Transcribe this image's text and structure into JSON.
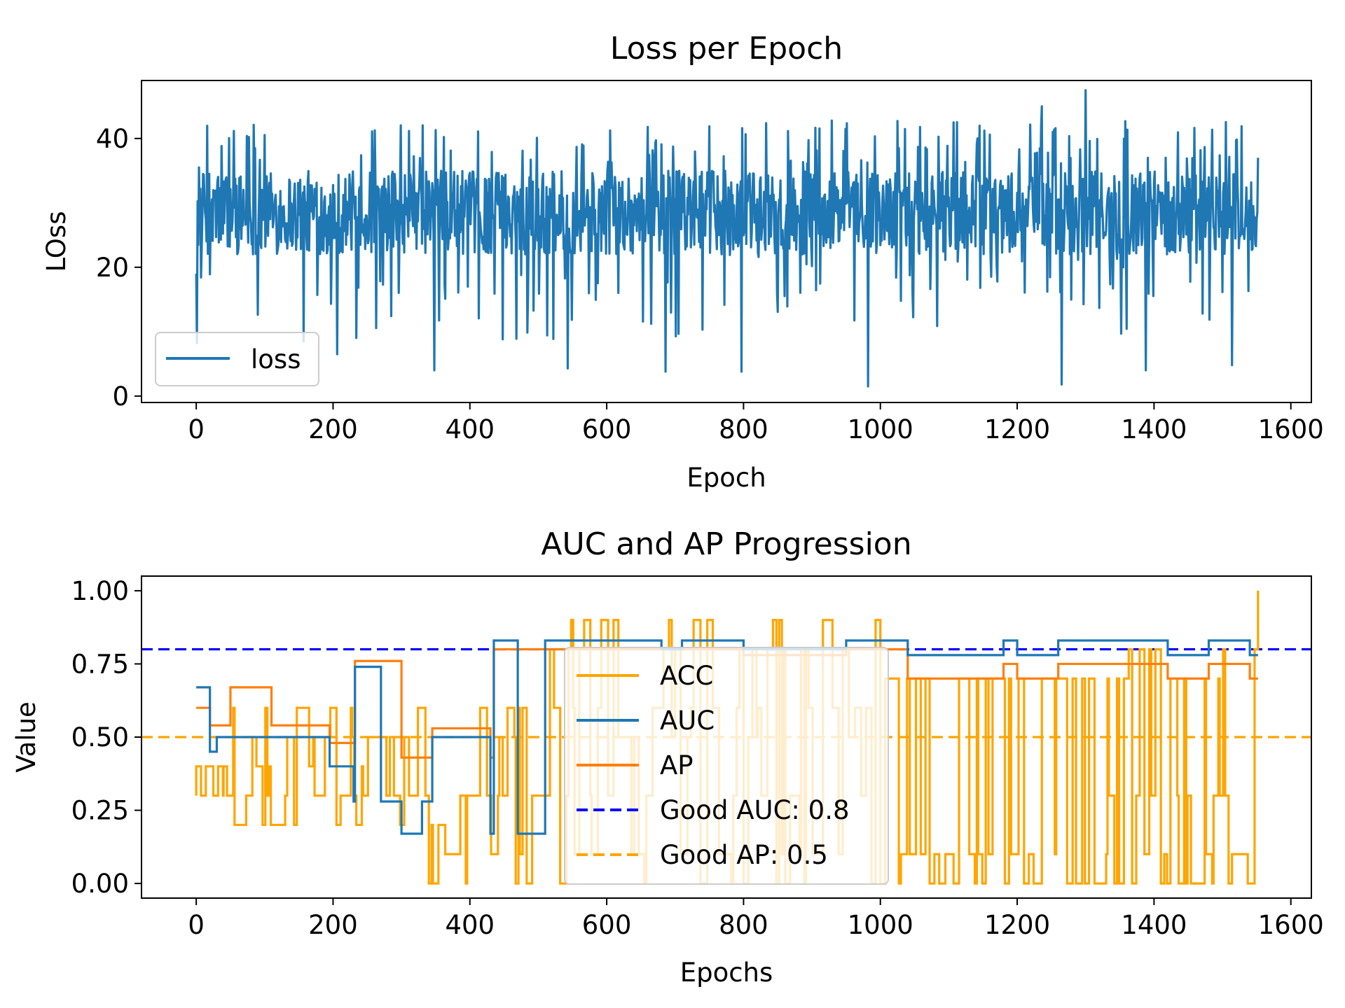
{
  "chart_data": [
    {
      "type": "line",
      "title": "Loss per Epoch",
      "xlabel": "Epoch",
      "ylabel": "LOss",
      "xlim": [
        -80,
        1630
      ],
      "ylim": [
        -1,
        49
      ],
      "xticks": [
        0,
        200,
        400,
        600,
        800,
        1000,
        1200,
        1400,
        1600
      ],
      "xtick_labels": [
        "0",
        "200",
        "400",
        "600",
        "800",
        "1000",
        "1200",
        "1400",
        "1600"
      ],
      "yticks": [
        0,
        20,
        40
      ],
      "ytick_labels": [
        "0",
        "20",
        "40"
      ],
      "grid": false,
      "legend": {
        "position": "lower-left",
        "entries": [
          "loss"
        ]
      },
      "series": [
        {
          "name": "loss",
          "color": "#1f77b4",
          "style": "solid",
          "n_points": 1553,
          "x_range": [
            0,
            1552
          ],
          "y_typical_range": [
            22,
            35
          ],
          "y_min": 1.5,
          "y_max": 47.5,
          "notable_points": [
            {
              "x": 0,
              "y": 19
            },
            {
              "x": 4,
              "y": 35.5
            },
            {
              "x": 157,
              "y": 8.5
            },
            {
              "x": 206,
              "y": 6.5
            },
            {
              "x": 348,
              "y": 4
            },
            {
              "x": 543,
              "y": 4.3
            },
            {
              "x": 686,
              "y": 3.8
            },
            {
              "x": 797,
              "y": 3.8
            },
            {
              "x": 982,
              "y": 1.5
            },
            {
              "x": 1265,
              "y": 1.8
            },
            {
              "x": 1300,
              "y": 47.5
            },
            {
              "x": 1236,
              "y": 45
            },
            {
              "x": 1388,
              "y": 4
            },
            {
              "x": 1514,
              "y": 4.8
            },
            {
              "x": 1552,
              "y": 37
            }
          ]
        }
      ]
    },
    {
      "type": "line",
      "title": "AUC and AP Progression",
      "xlabel": "Epochs",
      "ylabel": "Value",
      "xlim": [
        -80,
        1630
      ],
      "ylim": [
        -0.05,
        1.05
      ],
      "xticks": [
        0,
        200,
        400,
        600,
        800,
        1000,
        1200,
        1400,
        1600
      ],
      "xtick_labels": [
        "0",
        "200",
        "400",
        "600",
        "800",
        "1000",
        "1200",
        "1400",
        "1600"
      ],
      "yticks": [
        0,
        0.25,
        0.5,
        0.75,
        1.0
      ],
      "ytick_labels": [
        "0.00",
        "0.25",
        "0.50",
        "0.75",
        "1.00"
      ],
      "grid": false,
      "legend": {
        "position": "center",
        "entries": [
          "ACC",
          "AUC",
          "AP",
          "Good AUC: 0.8",
          "Good AP: 0.5"
        ]
      },
      "series": [
        {
          "name": "ACC",
          "color": "#ffa500",
          "style": "solid",
          "segments": [
            {
              "x": [
                0,
                40
              ],
              "levels": [
                0.3,
                0.4
              ]
            },
            {
              "x": [
                40,
                340
              ],
              "levels": [
                0.2,
                0.3,
                0.4,
                0.5,
                0.6
              ]
            },
            {
              "x": [
                340,
                500
              ],
              "levels": [
                0.0,
                0.1,
                0.2,
                0.3,
                0.5,
                0.6
              ]
            },
            {
              "x": [
                500,
                1000
              ],
              "levels": [
                0.0,
                0.1,
                0.3,
                0.5,
                0.6,
                0.8,
                0.9
              ]
            },
            {
              "x": [
                1000,
                1330
              ],
              "levels": [
                0.0,
                0.1,
                0.7
              ]
            },
            {
              "x": [
                1330,
                1552
              ],
              "levels": [
                0.0,
                0.1,
                0.3,
                0.7,
                0.8
              ]
            }
          ],
          "last_point": {
            "x": 1552,
            "y": 1.0
          }
        },
        {
          "name": "AUC",
          "color": "#1f77b4",
          "style": "solid",
          "steps": [
            {
              "x": [
                0,
                20
              ],
              "y": 0.67
            },
            {
              "x": 20,
              "y": 0.45
            },
            {
              "x": 30,
              "y": 0.5
            },
            {
              "x": 110,
              "y": 0.5
            },
            {
              "x": 195,
              "y": 0.5
            },
            {
              "x": 195,
              "y": 0.4
            },
            {
              "x": 230,
              "y": 0.28
            },
            {
              "x": 232,
              "y": 0.74
            },
            {
              "x": 270,
              "y": 0.28
            },
            {
              "x": 300,
              "y": 0.17
            },
            {
              "x": 330,
              "y": 0.28
            },
            {
              "x": 345,
              "y": 0.5
            },
            {
              "x": 430,
              "y": 0.17
            },
            {
              "x": 435,
              "y": 0.83
            },
            {
              "x": 470,
              "y": 0.17
            },
            {
              "x": 510,
              "y": 0.83
            },
            {
              "x": 680,
              "y": 0.8
            },
            {
              "x": 710,
              "y": 0.83
            },
            {
              "x": 800,
              "y": 0.8
            },
            {
              "x": 950,
              "y": 0.83
            },
            {
              "x": 1040,
              "y": 0.78
            },
            {
              "x": 1180,
              "y": 0.83
            },
            {
              "x": 1200,
              "y": 0.78
            },
            {
              "x": 1260,
              "y": 0.83
            },
            {
              "x": 1420,
              "y": 0.78
            },
            {
              "x": 1480,
              "y": 0.83
            },
            {
              "x": [
                1540,
                1552
              ],
              "y": 0.78
            }
          ]
        },
        {
          "name": "AP",
          "color": "#ff7f0e",
          "style": "solid",
          "steps": [
            {
              "x": [
                0,
                20
              ],
              "y": 0.6
            },
            {
              "x": 20,
              "y": 0.54
            },
            {
              "x": 50,
              "y": 0.67
            },
            {
              "x": 110,
              "y": 0.54
            },
            {
              "x": 195,
              "y": 0.48
            },
            {
              "x": 232,
              "y": 0.76
            },
            {
              "x": 270,
              "y": 0.76
            },
            {
              "x": 300,
              "y": 0.43
            },
            {
              "x": 345,
              "y": 0.53
            },
            {
              "x": 430,
              "y": 0.43
            },
            {
              "x": 435,
              "y": 0.8
            },
            {
              "x": 510,
              "y": 0.8
            },
            {
              "x": 680,
              "y": 0.8
            },
            {
              "x": 800,
              "y": 0.78
            },
            {
              "x": 950,
              "y": 0.8
            },
            {
              "x": 1040,
              "y": 0.7
            },
            {
              "x": 1180,
              "y": 0.75
            },
            {
              "x": 1200,
              "y": 0.7
            },
            {
              "x": 1260,
              "y": 0.75
            },
            {
              "x": 1420,
              "y": 0.7
            },
            {
              "x": 1480,
              "y": 0.75
            },
            {
              "x": [
                1540,
                1552
              ],
              "y": 0.7
            }
          ]
        },
        {
          "name": "Good AUC: 0.8",
          "color": "#0000ff",
          "style": "dashed",
          "y": 0.8
        },
        {
          "name": "Good AP: 0.5",
          "color": "#ffa500",
          "style": "dashed",
          "y": 0.5
        }
      ]
    }
  ]
}
